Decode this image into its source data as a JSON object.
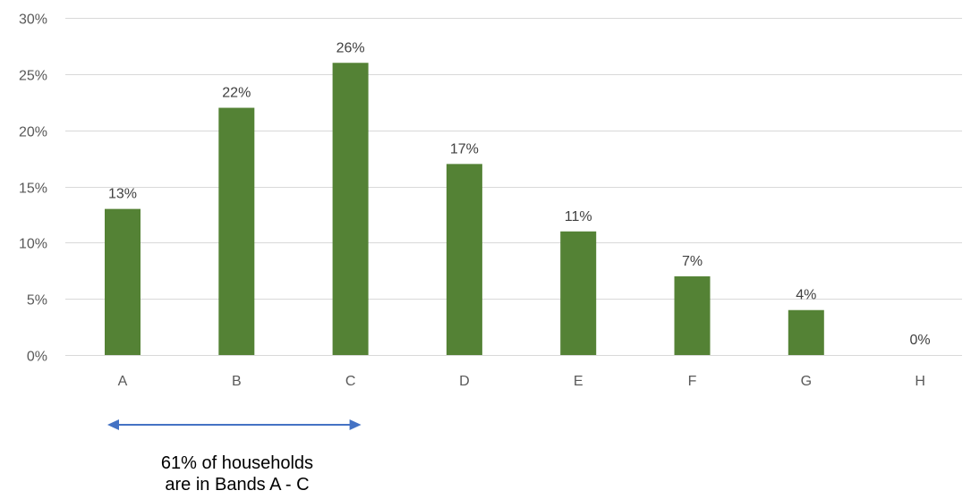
{
  "chart_data": {
    "type": "bar",
    "categories": [
      "A",
      "B",
      "C",
      "D",
      "E",
      "F",
      "G",
      "H"
    ],
    "values": [
      13,
      22,
      26,
      17,
      11,
      7,
      4,
      0
    ],
    "data_labels": [
      "13%",
      "22%",
      "26%",
      "17%",
      "11%",
      "7%",
      "4%",
      "0%"
    ],
    "ylim": [
      0,
      30
    ],
    "yticks": [
      0,
      5,
      10,
      15,
      20,
      25,
      30
    ],
    "ytick_labels": [
      "0%",
      "5%",
      "10%",
      "15%",
      "20%",
      "25%",
      "30%"
    ],
    "grid": true,
    "title": "",
    "xlabel": "",
    "ylabel": ""
  },
  "annotation": {
    "line1": "61% of households",
    "line2": "are in Bands A - C",
    "span": [
      "A",
      "C"
    ]
  },
  "colors": {
    "bar": "#548235",
    "grid": "#d9d9d9",
    "arrow": "#4472c4"
  }
}
